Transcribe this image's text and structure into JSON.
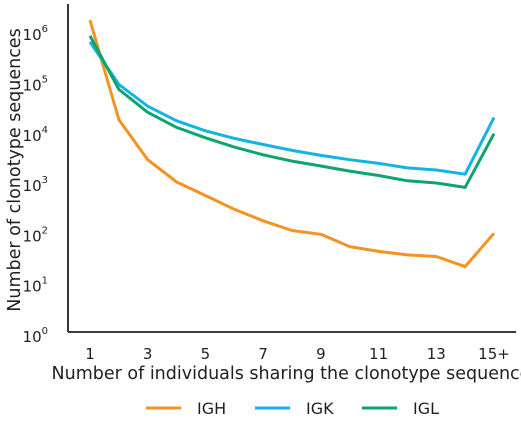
{
  "chart_data": {
    "type": "line",
    "title": "",
    "xlabel": "Number of individuals sharing the clonotype sequence",
    "ylabel": "Number of clonotype sequences",
    "yscale": "log",
    "ylim": [
      1,
      3000000
    ],
    "x_positions": [
      1,
      2,
      3,
      4,
      5,
      6,
      7,
      8,
      9,
      10,
      11,
      12,
      13,
      14,
      15
    ],
    "x_tick_values": [
      1,
      3,
      5,
      7,
      9,
      11,
      13,
      15
    ],
    "x_tick_labels": [
      "1",
      "3",
      "5",
      "7",
      "9",
      "11",
      "13",
      "15+"
    ],
    "y_tick_values": [
      1,
      10,
      100,
      1000,
      10000,
      100000,
      1000000
    ],
    "y_tick_labels": [
      {
        "base": "10",
        "exp": "0"
      },
      {
        "base": "10",
        "exp": "1"
      },
      {
        "base": "10",
        "exp": "2"
      },
      {
        "base": "10",
        "exp": "3"
      },
      {
        "base": "10",
        "exp": "4"
      },
      {
        "base": "10",
        "exp": "5"
      },
      {
        "base": "10",
        "exp": "6"
      }
    ],
    "grid": false,
    "legend_position": "bottom",
    "series": [
      {
        "name": "IGH",
        "color": "#f39324",
        "values": [
          1900000,
          20000,
          3200,
          1150,
          620,
          330,
          195,
          125,
          105,
          60,
          48,
          41,
          38,
          24,
          110
        ]
      },
      {
        "name": "IGK",
        "color": "#13b3e6",
        "values": [
          700000,
          100000,
          37000,
          19000,
          12000,
          8500,
          6400,
          4900,
          3900,
          3200,
          2700,
          2200,
          2000,
          1650,
          22000
        ]
      },
      {
        "name": "IGL",
        "color": "#0da46e",
        "values": [
          930000,
          80000,
          28000,
          14000,
          8700,
          5700,
          4000,
          3000,
          2400,
          1900,
          1550,
          1220,
          1100,
          900,
          10500
        ]
      }
    ]
  }
}
